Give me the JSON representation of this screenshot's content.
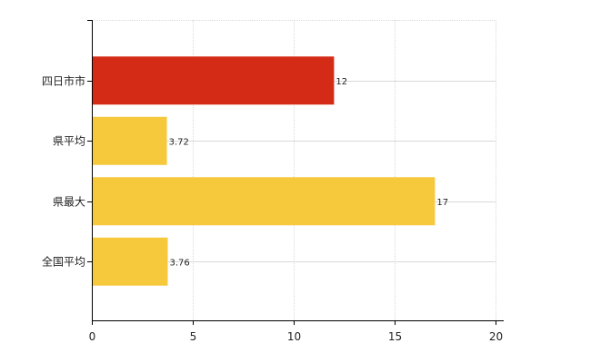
{
  "chart_data": {
    "type": "bar",
    "orientation": "horizontal",
    "categories": [
      "四日市市",
      "県平均",
      "県最大",
      "全国平均"
    ],
    "values": [
      12,
      3.72,
      17,
      3.76
    ],
    "value_labels": [
      "12",
      "3.72",
      "17",
      "3.76"
    ],
    "bar_colors": [
      "#d42b17",
      "#f6c93d",
      "#f6c93d",
      "#f6c93d"
    ],
    "xlim": [
      0,
      20
    ],
    "xticks": [
      0,
      5,
      10,
      15,
      20
    ],
    "xtick_labels": [
      "0",
      "5",
      "10",
      "15",
      "20"
    ],
    "grid": true,
    "title": "",
    "xlabel": "",
    "ylabel": ""
  },
  "colors": {
    "highlight": "#d42b17",
    "normal": "#f6c93d",
    "grid": "#d9d9d9",
    "axis": "#000000"
  }
}
